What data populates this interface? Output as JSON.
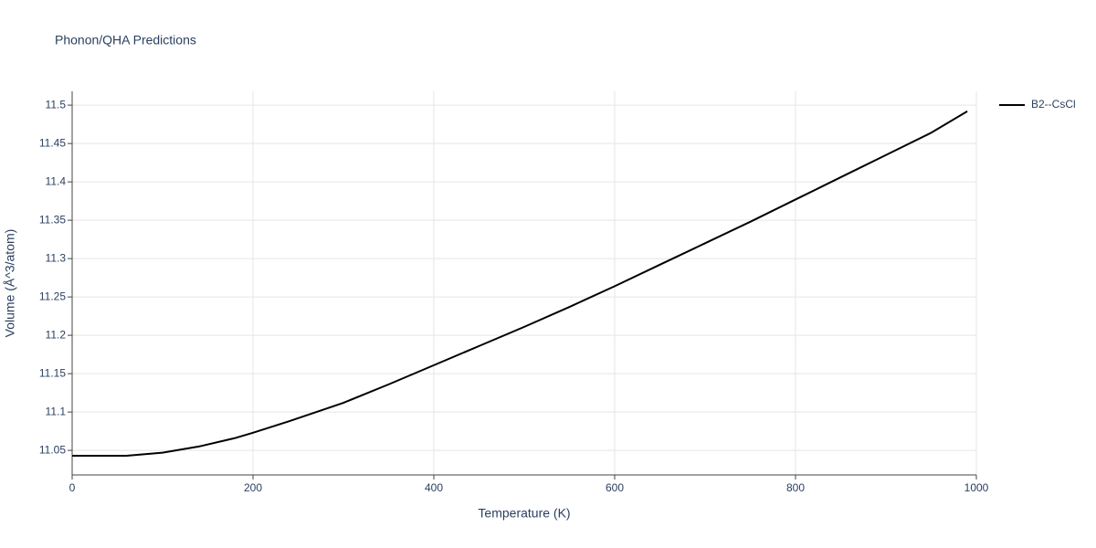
{
  "chart_data": {
    "type": "line",
    "title": "Phonon/QHA Predictions",
    "x_label": "Temperature (K)",
    "y_label": "Volume (Å^3/atom)",
    "x": [
      0,
      60,
      100,
      140,
      180,
      200,
      240,
      300,
      350,
      400,
      450,
      500,
      550,
      600,
      650,
      700,
      750,
      800,
      850,
      900,
      950,
      990
    ],
    "series": [
      {
        "name": "B2--CsCl",
        "color": "#000000",
        "values": [
          11.043,
          11.043,
          11.047,
          11.055,
          11.066,
          11.073,
          11.088,
          11.112,
          11.136,
          11.161,
          11.186,
          11.211,
          11.237,
          11.264,
          11.292,
          11.32,
          11.348,
          11.377,
          11.406,
          11.435,
          11.464,
          11.492
        ]
      }
    ],
    "xlim": [
      0,
      1000
    ],
    "xticks": [
      0,
      200,
      400,
      600,
      800,
      1000
    ],
    "ylim": [
      11.018,
      11.518
    ],
    "yticks": [
      11.05,
      11.1,
      11.15,
      11.2,
      11.25,
      11.3,
      11.35,
      11.4,
      11.45,
      11.5
    ],
    "grid": true,
    "legend": "right"
  }
}
